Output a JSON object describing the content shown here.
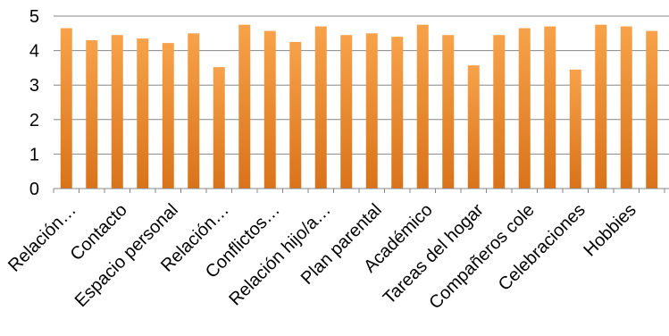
{
  "chart_data": {
    "type": "bar",
    "categories": [
      "Relación…",
      "",
      "Contacto",
      "",
      "Espacio personal",
      "",
      "Relación…",
      "",
      "Conflictos…",
      "",
      "Relación hijo/a…",
      "",
      "Plan parental",
      "",
      "Académico",
      "",
      "Tareas del hogar",
      "",
      "Compañeros cole",
      "",
      "Celebraciones",
      "",
      "Hobbies",
      ""
    ],
    "values": [
      4.65,
      4.3,
      4.45,
      4.35,
      4.22,
      4.5,
      3.52,
      4.75,
      4.57,
      4.25,
      4.7,
      4.45,
      4.5,
      4.4,
      4.75,
      4.45,
      3.57,
      4.45,
      4.65,
      4.7,
      3.45,
      4.75,
      4.7,
      4.57
    ],
    "ylim": [
      0,
      5
    ],
    "yticks": [
      "0",
      "1",
      "2",
      "3",
      "4",
      "5"
    ],
    "grid": true,
    "bar_color": "#F28E2B",
    "bar_color_dark": "#D9731A"
  }
}
